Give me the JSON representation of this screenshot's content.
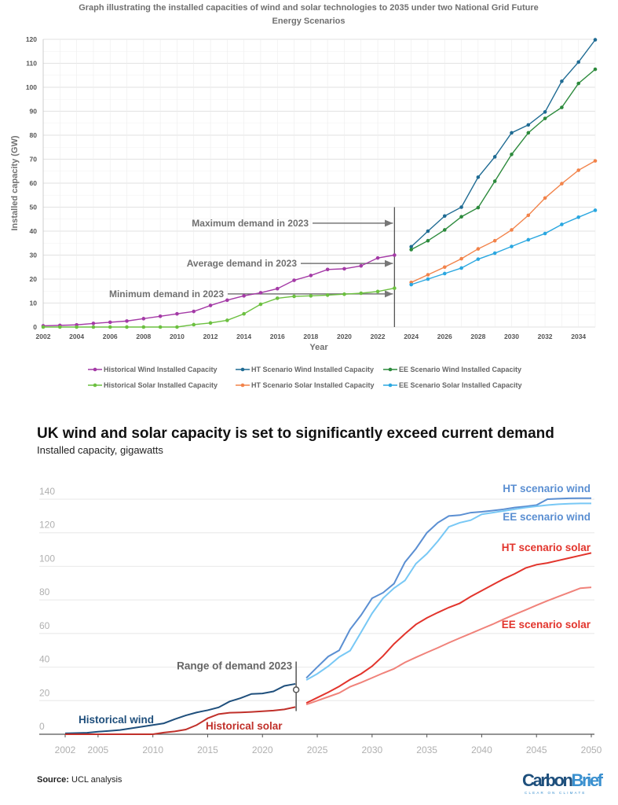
{
  "chart_data": [
    {
      "type": "line",
      "title": "Graph illustrating the installed capacities of wind and solar technologies to 2035 under two National Grid Future Energy Scenarios",
      "title_lines": [
        "Graph illustrating the installed capacities  of wind and solar technologies to 2035 under two National Grid Future",
        "Energy Scenarios"
      ],
      "xlabel": "Year",
      "ylabel": "Installed capacity (GW)",
      "xlim": [
        2002,
        2035
      ],
      "ylim": [
        0,
        120
      ],
      "x_ticks": [
        2002,
        2004,
        2006,
        2008,
        2010,
        2012,
        2014,
        2016,
        2018,
        2020,
        2022,
        2024,
        2026,
        2028,
        2030,
        2032,
        2034
      ],
      "y_ticks": [
        0,
        10,
        20,
        30,
        40,
        50,
        60,
        70,
        80,
        90,
        100,
        110,
        120
      ],
      "grid": true,
      "legend_position": "bottom",
      "markers": true,
      "series": [
        {
          "name": "Historical Wind Installed Capacity",
          "color": "#a43aa6",
          "x": [
            2002,
            2003,
            2004,
            2005,
            2006,
            2007,
            2008,
            2009,
            2010,
            2011,
            2012,
            2013,
            2014,
            2015,
            2016,
            2017,
            2018,
            2019,
            2020,
            2021,
            2022,
            2023
          ],
          "values": [
            0.5,
            0.7,
            0.9,
            1.5,
            2,
            2.5,
            3.5,
            4.5,
            5.5,
            6.5,
            9,
            11.2,
            13,
            14.3,
            16,
            19.5,
            21.5,
            24,
            24.3,
            25.5,
            28.8,
            30
          ]
        },
        {
          "name": "HT Scenario Wind Installed Capacity",
          "color": "#1f6b93",
          "x": [
            2024,
            2025,
            2026,
            2027,
            2028,
            2029,
            2030,
            2031,
            2032,
            2033,
            2034,
            2035
          ],
          "values": [
            33.5,
            40,
            46.3,
            50,
            62.5,
            71,
            81,
            84.3,
            89.7,
            102.5,
            110.5,
            119.8
          ]
        },
        {
          "name": "EE Scenario Wind Installed Capacity",
          "color": "#2c8a3c",
          "x": [
            2024,
            2025,
            2026,
            2027,
            2028,
            2029,
            2030,
            2031,
            2032,
            2033,
            2034,
            2035
          ],
          "values": [
            32.3,
            36,
            40.5,
            46,
            49.8,
            60.8,
            72,
            81,
            87,
            91.6,
            101.6,
            107.5
          ]
        },
        {
          "name": "Historical Solar Installed Capacity",
          "color": "#6cc040",
          "x": [
            2002,
            2003,
            2004,
            2005,
            2006,
            2007,
            2008,
            2009,
            2010,
            2011,
            2012,
            2013,
            2014,
            2015,
            2016,
            2017,
            2018,
            2019,
            2020,
            2021,
            2022,
            2023
          ],
          "values": [
            0,
            0,
            0,
            0,
            0,
            0,
            0,
            0,
            0,
            1,
            1.7,
            2.8,
            5.5,
            9.5,
            12,
            12.8,
            13,
            13.3,
            13.7,
            14.1,
            14.8,
            16.2
          ]
        },
        {
          "name": "HT Scenario Solar Installed Capacity",
          "color": "#f2834a",
          "x": [
            2024,
            2025,
            2026,
            2027,
            2028,
            2029,
            2030,
            2031,
            2032,
            2033,
            2034,
            2035
          ],
          "values": [
            18.6,
            21.8,
            25,
            28.5,
            32.6,
            36,
            40.5,
            46.6,
            53.8,
            59.8,
            65.4,
            69.3
          ]
        },
        {
          "name": "EE Scenario Solar Installed Capacity",
          "color": "#2aa7e0",
          "x": [
            2024,
            2025,
            2026,
            2027,
            2028,
            2029,
            2030,
            2031,
            2032,
            2033,
            2034,
            2035
          ],
          "values": [
            17.7,
            20,
            22.3,
            24.6,
            28.3,
            30.8,
            33.6,
            36.4,
            39,
            42.8,
            45.8,
            48.7
          ]
        }
      ],
      "annotations": [
        {
          "text": "Maximum demand in 2023",
          "x": 2023,
          "y": 43.3
        },
        {
          "text": "Average demand in 2023",
          "x": 2023,
          "y": 26.5
        },
        {
          "text": "Minimum demand in 2023",
          "x": 2023,
          "y": 13.8
        }
      ],
      "vertical_marker": {
        "x": 2023,
        "y_range": [
          0,
          50
        ]
      }
    },
    {
      "type": "line",
      "title": "UK wind and solar capacity is set to significantly exceed current demand",
      "subtitle": "Installed capacity, gigawatts",
      "xlim": [
        2002,
        2050
      ],
      "ylim": [
        0,
        140
      ],
      "x_ticks": [
        2002,
        2005,
        2010,
        2015,
        2020,
        2025,
        2030,
        2035,
        2040,
        2045,
        2050
      ],
      "y_ticks": [
        0,
        20,
        40,
        60,
        80,
        100,
        120,
        140
      ],
      "grid": true,
      "legend_position": "direct labels",
      "series": [
        {
          "name": "Historical wind",
          "color": "#1f4f7c",
          "x": [
            2002,
            2003,
            2004,
            2005,
            2006,
            2007,
            2008,
            2009,
            2010,
            2011,
            2012,
            2013,
            2014,
            2015,
            2016,
            2017,
            2018,
            2019,
            2020,
            2021,
            2022,
            2023
          ],
          "values": [
            0.5,
            0.7,
            0.9,
            1.5,
            2,
            2.5,
            3.5,
            4.5,
            5.5,
            6.5,
            9,
            11.2,
            13,
            14.3,
            16,
            19.5,
            21.5,
            24,
            24.3,
            25.5,
            28.8,
            30
          ]
        },
        {
          "name": "Historical solar",
          "color": "#c0302a",
          "x": [
            2002,
            2003,
            2004,
            2005,
            2006,
            2007,
            2008,
            2009,
            2010,
            2011,
            2012,
            2013,
            2014,
            2015,
            2016,
            2017,
            2018,
            2019,
            2020,
            2021,
            2022,
            2023
          ],
          "values": [
            0,
            0,
            0,
            0,
            0,
            0,
            0,
            0,
            0,
            1,
            1.7,
            2.8,
            5.5,
            9.5,
            12,
            12.8,
            13,
            13.3,
            13.7,
            14.1,
            14.8,
            16.2
          ]
        },
        {
          "name": "HT scenario wind",
          "color": "#5b8fd2",
          "x": [
            2024,
            2025,
            2026,
            2027,
            2028,
            2029,
            2030,
            2031,
            2032,
            2033,
            2034,
            2035,
            2036,
            2037,
            2038,
            2039,
            2040,
            2041,
            2042,
            2043,
            2044,
            2045,
            2046,
            2047,
            2048,
            2049,
            2050
          ],
          "values": [
            33.5,
            40,
            46.3,
            50,
            62.5,
            71,
            81,
            84.3,
            89.7,
            102.5,
            110.5,
            120,
            126,
            130,
            130.5,
            132,
            132.5,
            133.2,
            134,
            135,
            135.7,
            136.5,
            140,
            140.3,
            140.5,
            140.6,
            140.6
          ]
        },
        {
          "name": "EE scenario wind",
          "color": "#78c8f5",
          "x": [
            2024,
            2025,
            2026,
            2027,
            2028,
            2029,
            2030,
            2031,
            2032,
            2033,
            2034,
            2035,
            2036,
            2037,
            2038,
            2039,
            2040,
            2041,
            2042,
            2043,
            2044,
            2045,
            2046,
            2047,
            2048,
            2049,
            2050
          ],
          "values": [
            32.3,
            36,
            40.5,
            46,
            49.8,
            60.8,
            72,
            81,
            87,
            91.6,
            101.6,
            107.5,
            115,
            123.5,
            126,
            127.5,
            131,
            132,
            133,
            134,
            135,
            135.8,
            136.5,
            137,
            137.3,
            137.5,
            137.5
          ]
        },
        {
          "name": "HT scenario solar",
          "color": "#e2342c",
          "x": [
            2024,
            2025,
            2026,
            2027,
            2028,
            2029,
            2030,
            2031,
            2032,
            2033,
            2034,
            2035,
            2036,
            2037,
            2038,
            2039,
            2040,
            2041,
            2042,
            2043,
            2044,
            2045,
            2046,
            2047,
            2048,
            2049,
            2050
          ],
          "values": [
            18.6,
            21.8,
            25,
            28.5,
            32.6,
            36,
            40.5,
            46.6,
            53.8,
            59.8,
            65.4,
            69.3,
            72.5,
            75.5,
            78,
            82,
            85.5,
            89,
            92.5,
            95.5,
            99,
            101,
            102,
            103.5,
            105,
            106.5,
            108
          ]
        },
        {
          "name": "EE scenario solar",
          "color": "#f0827a",
          "x": [
            2024,
            2025,
            2026,
            2027,
            2028,
            2029,
            2030,
            2031,
            2032,
            2033,
            2034,
            2035,
            2036,
            2037,
            2038,
            2039,
            2040,
            2041,
            2042,
            2043,
            2044,
            2045,
            2046,
            2047,
            2048,
            2049,
            2050
          ],
          "values": [
            17.7,
            20,
            22.3,
            24.6,
            28.3,
            30.8,
            33.6,
            36.4,
            39,
            42.8,
            45.8,
            48.7,
            51.5,
            54.5,
            57.3,
            60,
            62.8,
            65.5,
            68.5,
            71.3,
            74,
            76.8,
            79.5,
            82,
            84.5,
            87,
            87.5
          ]
        }
      ],
      "annotations": [
        {
          "text": "Range of demand 2023",
          "x": 2023,
          "y_range": [
            13.8,
            43.3
          ],
          "marker_y": 26.5
        }
      ],
      "source_label": "Source:",
      "source_text": "UCL analysis",
      "logo": "CarbonBrief",
      "logo_tagline": "CLEAR ON CLIMATE"
    }
  ]
}
